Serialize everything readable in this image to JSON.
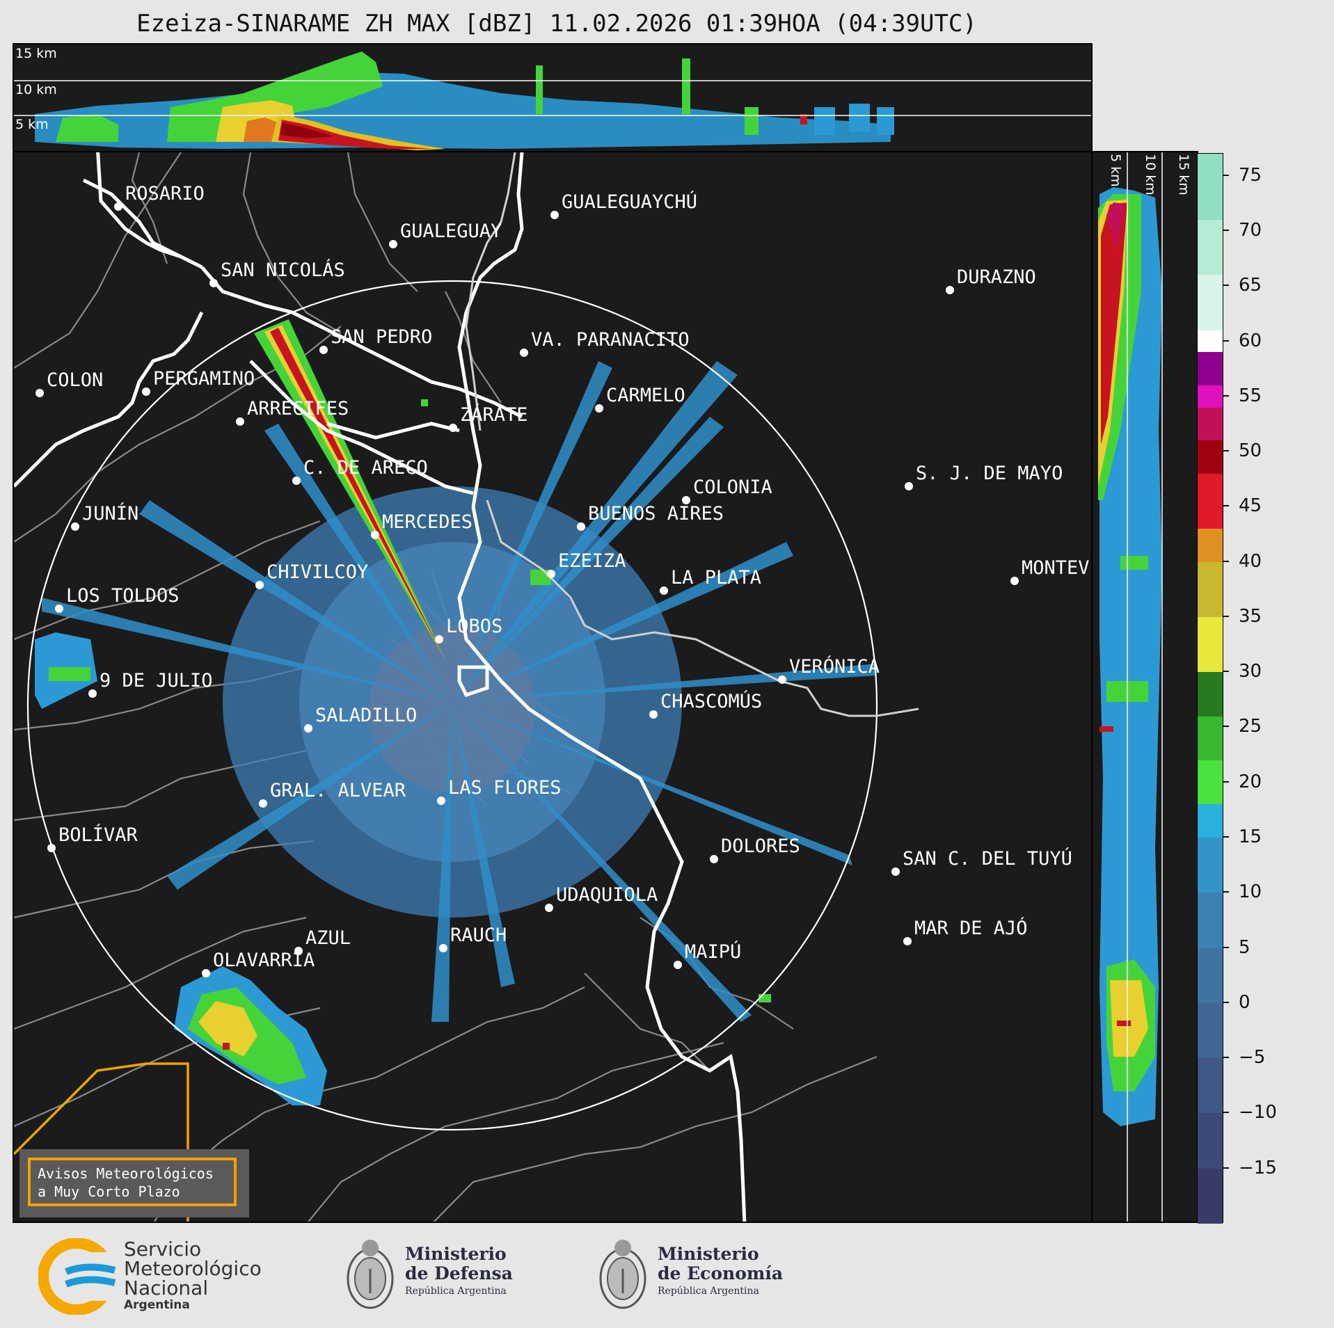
{
  "title": "Ezeiza-SINARAME ZH MAX [dBZ] 11.02.2026 01:39HOA (04:39UTC)",
  "top_panel": {
    "height_labels": [
      "15 km",
      "10 km",
      "5 km"
    ]
  },
  "side_panel": {
    "height_labels": [
      "5 km",
      "10 km",
      "15 km"
    ]
  },
  "colorbar": {
    "unit": "dBZ",
    "range": [
      -20,
      77
    ],
    "ticks": [
      "75",
      "70",
      "65",
      "60",
      "55",
      "50",
      "45",
      "40",
      "35",
      "30",
      "25",
      "20",
      "15",
      "10",
      "5",
      "0",
      "−5",
      "−10",
      "−15"
    ],
    "tick_values": [
      75,
      70,
      65,
      60,
      55,
      50,
      45,
      40,
      35,
      30,
      25,
      20,
      15,
      10,
      5,
      0,
      -5,
      -10,
      -15
    ],
    "bands": [
      {
        "from": -20,
        "to": -15,
        "color": "#3a3a68"
      },
      {
        "from": -15,
        "to": -10,
        "color": "#3c4a78"
      },
      {
        "from": -10,
        "to": -5,
        "color": "#3f5886"
      },
      {
        "from": -5,
        "to": 0,
        "color": "#3f6694"
      },
      {
        "from": 0,
        "to": 5,
        "color": "#3f74a2"
      },
      {
        "from": 5,
        "to": 10,
        "color": "#3b82b4"
      },
      {
        "from": 10,
        "to": 15,
        "color": "#3394c8"
      },
      {
        "from": 15,
        "to": 18,
        "color": "#2ab0dc"
      },
      {
        "from": 18,
        "to": 22,
        "color": "#4ae23c"
      },
      {
        "from": 22,
        "to": 26,
        "color": "#38b830"
      },
      {
        "from": 26,
        "to": 30,
        "color": "#287a20"
      },
      {
        "from": 30,
        "to": 35,
        "color": "#e8e838"
      },
      {
        "from": 35,
        "to": 40,
        "color": "#c8b830"
      },
      {
        "from": 40,
        "to": 43,
        "color": "#e09020"
      },
      {
        "from": 43,
        "to": 48,
        "color": "#e01a28"
      },
      {
        "from": 48,
        "to": 51,
        "color": "#a00010"
      },
      {
        "from": 51,
        "to": 54,
        "color": "#c0105a"
      },
      {
        "from": 54,
        "to": 56,
        "color": "#e010c0"
      },
      {
        "from": 56,
        "to": 59,
        "color": "#900090"
      },
      {
        "from": 59,
        "to": 61,
        "color": "#ffffff"
      },
      {
        "from": 61,
        "to": 66,
        "color": "#d8f4e8"
      },
      {
        "from": 66,
        "to": 71,
        "color": "#b4ecd4"
      },
      {
        "from": 71,
        "to": 77,
        "color": "#8ee0c0"
      }
    ]
  },
  "map": {
    "radar_center": "EZEIZA",
    "cities": [
      {
        "name": "ROSARIO"
      },
      {
        "name": "GUALEGUAYCHÚ"
      },
      {
        "name": "GUALEGUAY"
      },
      {
        "name": "SAN NICOLÁS"
      },
      {
        "name": "DURAZNO"
      },
      {
        "name": "SAN PEDRO"
      },
      {
        "name": "VA. PARANACITO"
      },
      {
        "name": "COLON"
      },
      {
        "name": "PERGAMINO"
      },
      {
        "name": "CARMELO"
      },
      {
        "name": "ARRECIFES"
      },
      {
        "name": "ZÁRATE"
      },
      {
        "name": "C. DE ARECO"
      },
      {
        "name": "S. J. DE MAYO"
      },
      {
        "name": "COLONIA"
      },
      {
        "name": "JUNÍN"
      },
      {
        "name": "BUENOS AIRES"
      },
      {
        "name": "MERCEDES"
      },
      {
        "name": "EZEIZA"
      },
      {
        "name": "MONTEVIDEO"
      },
      {
        "name": "CHIVILCOY"
      },
      {
        "name": "LA PLATA"
      },
      {
        "name": "LOS TOLDOS"
      },
      {
        "name": "LOBOS"
      },
      {
        "name": "VERÓNICA"
      },
      {
        "name": "9 DE JULIO"
      },
      {
        "name": "CHASCOMÚS"
      },
      {
        "name": "SALADILLO"
      },
      {
        "name": "GRAL. ALVEAR"
      },
      {
        "name": "LAS FLORES"
      },
      {
        "name": "BOLÍVAR"
      },
      {
        "name": "DOLORES"
      },
      {
        "name": "SAN C. DEL TUYÚ"
      },
      {
        "name": "UDAQUIOLA"
      },
      {
        "name": "MAR DE AJÓ"
      },
      {
        "name": "RAUCH"
      },
      {
        "name": "AZUL"
      },
      {
        "name": "OLAVARRÍA"
      },
      {
        "name": "MAIPÚ"
      }
    ]
  },
  "avisos": {
    "line1": "Avisos Meteorológicos",
    "line2": "a Muy Corto Plazo"
  },
  "footer": {
    "smn_line1": "Servicio",
    "smn_line2": "Meteorológico",
    "smn_line3": "Nacional",
    "smn_line4": "Argentina",
    "defensa_line1": "Ministerio",
    "defensa_line2": "de Defensa",
    "defensa_sub": "República Argentina",
    "economia_line1": "Ministerio",
    "economia_line2": "de Economía",
    "economia_sub": "República Argentina"
  }
}
